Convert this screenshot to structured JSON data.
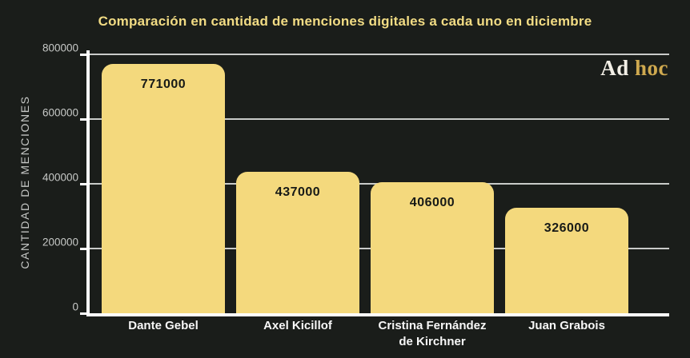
{
  "title": "Comparación en cantidad de menciones digitales a cada uno en diciembre",
  "logo": {
    "part_white": "Ad",
    "part_gold": "hoc"
  },
  "chart_data": {
    "type": "bar",
    "title": "Comparación en cantidad de menciones digitales a cada uno en diciembre",
    "categories": [
      "Dante Gebel",
      "Axel Kicillof",
      "Cristina Fernández de Kirchner",
      "Juan Grabois"
    ],
    "values": [
      771000,
      437000,
      406000,
      326000
    ],
    "value_labels": [
      "771000",
      "437000",
      "406000",
      "326000"
    ],
    "xlabel": "",
    "ylabel": "CANTIDAD DE MENCIONES",
    "ylim": [
      0,
      800000
    ],
    "yticks": [
      0,
      200000,
      400000,
      600000,
      800000
    ],
    "ytick_labels": [
      "0",
      "200000",
      "400000",
      "600000",
      "800000"
    ],
    "grid": true,
    "legend": false,
    "bar_color": "#f4d97d",
    "background_color": "#1a1d1a"
  },
  "colors": {
    "background": "#1a1d1a",
    "bar": "#f4d97d",
    "title": "#f2dc84",
    "axis": "#ffffff",
    "gridline": "#c9cbc9",
    "tick_label": "#c6c8c6",
    "category_label": "#f7f7f7",
    "value_label": "#171a17",
    "logo_white": "#f2efe6",
    "logo_gold": "#cfa94f"
  }
}
